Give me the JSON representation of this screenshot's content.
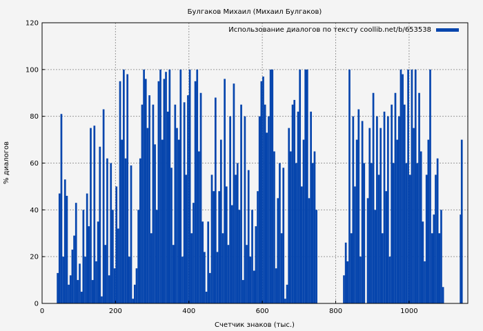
{
  "chart_data": {
    "type": "bar",
    "title": "Булгаков Михаил (Михаил Булгаков)",
    "xlabel": "Счетчик знаков (тыс.)",
    "ylabel": "% диалогов",
    "xlim": [
      0,
      1160
    ],
    "ylim": [
      0,
      120
    ],
    "xticks": [
      0,
      200,
      400,
      600,
      800,
      1000
    ],
    "yticks": [
      0,
      20,
      40,
      60,
      80,
      100,
      120
    ],
    "grid": true,
    "legend_placement": "top-right",
    "series": [
      {
        "name": "Использование диалогов по тексту coollib.net/b/653538",
        "color": "#0645ad",
        "points": [
          [
            40,
            13
          ],
          [
            45,
            47
          ],
          [
            50,
            81
          ],
          [
            55,
            20
          ],
          [
            60,
            53
          ],
          [
            65,
            46
          ],
          [
            70,
            8
          ],
          [
            75,
            12
          ],
          [
            80,
            23
          ],
          [
            85,
            29
          ],
          [
            90,
            43
          ],
          [
            95,
            10
          ],
          [
            100,
            17
          ],
          [
            105,
            5
          ],
          [
            110,
            40
          ],
          [
            115,
            20
          ],
          [
            120,
            47
          ],
          [
            125,
            33
          ],
          [
            130,
            75
          ],
          [
            135,
            10
          ],
          [
            140,
            76
          ],
          [
            145,
            18
          ],
          [
            150,
            35
          ],
          [
            155,
            67
          ],
          [
            160,
            3
          ],
          [
            165,
            83
          ],
          [
            170,
            25
          ],
          [
            175,
            62
          ],
          [
            180,
            12
          ],
          [
            185,
            60
          ],
          [
            190,
            40
          ],
          [
            195,
            15
          ],
          [
            200,
            50
          ],
          [
            205,
            32
          ],
          [
            210,
            95
          ],
          [
            215,
            70
          ],
          [
            220,
            100
          ],
          [
            225,
            62
          ],
          [
            230,
            98
          ],
          [
            235,
            20
          ],
          [
            240,
            59
          ],
          [
            245,
            2
          ],
          [
            250,
            8
          ],
          [
            255,
            15
          ],
          [
            260,
            40
          ],
          [
            265,
            62
          ],
          [
            270,
            85
          ],
          [
            275,
            100
          ],
          [
            280,
            96
          ],
          [
            285,
            75
          ],
          [
            290,
            89
          ],
          [
            295,
            30
          ],
          [
            300,
            85
          ],
          [
            305,
            68
          ],
          [
            310,
            40
          ],
          [
            315,
            95
          ],
          [
            320,
            100
          ],
          [
            325,
            70
          ],
          [
            330,
            96
          ],
          [
            335,
            99
          ],
          [
            340,
            82
          ],
          [
            345,
            100
          ],
          [
            350,
            58
          ],
          [
            355,
            25
          ],
          [
            360,
            85
          ],
          [
            365,
            75
          ],
          [
            370,
            70
          ],
          [
            375,
            100
          ],
          [
            380,
            20
          ],
          [
            385,
            86
          ],
          [
            390,
            55
          ],
          [
            395,
            89
          ],
          [
            400,
            100
          ],
          [
            405,
            30
          ],
          [
            410,
            43
          ],
          [
            415,
            95
          ],
          [
            420,
            100
          ],
          [
            425,
            65
          ],
          [
            430,
            90
          ],
          [
            435,
            35
          ],
          [
            440,
            22
          ],
          [
            445,
            5
          ],
          [
            450,
            35
          ],
          [
            455,
            13
          ],
          [
            460,
            55
          ],
          [
            465,
            48
          ],
          [
            470,
            88
          ],
          [
            475,
            22
          ],
          [
            480,
            48
          ],
          [
            485,
            70
          ],
          [
            490,
            30
          ],
          [
            495,
            96
          ],
          [
            500,
            50
          ],
          [
            505,
            25
          ],
          [
            510,
            80
          ],
          [
            515,
            42
          ],
          [
            520,
            94
          ],
          [
            525,
            55
          ],
          [
            530,
            60
          ],
          [
            535,
            40
          ],
          [
            540,
            85
          ],
          [
            545,
            10
          ],
          [
            550,
            80
          ],
          [
            555,
            25
          ],
          [
            560,
            57
          ],
          [
            565,
            20
          ],
          [
            570,
            40
          ],
          [
            575,
            14
          ],
          [
            580,
            33
          ],
          [
            585,
            48
          ],
          [
            590,
            80
          ],
          [
            595,
            95
          ],
          [
            600,
            97
          ],
          [
            605,
            85
          ],
          [
            610,
            73
          ],
          [
            615,
            80
          ],
          [
            620,
            100
          ],
          [
            625,
            100
          ],
          [
            630,
            65
          ],
          [
            635,
            15
          ],
          [
            640,
            45
          ],
          [
            645,
            60
          ],
          [
            650,
            30
          ],
          [
            655,
            58
          ],
          [
            660,
            2
          ],
          [
            665,
            8
          ],
          [
            670,
            75
          ],
          [
            675,
            65
          ],
          [
            680,
            85
          ],
          [
            685,
            87
          ],
          [
            690,
            60
          ],
          [
            695,
            82
          ],
          [
            700,
            100
          ],
          [
            705,
            50
          ],
          [
            710,
            70
          ],
          [
            715,
            100
          ],
          [
            720,
            100
          ],
          [
            725,
            45
          ],
          [
            730,
            82
          ],
          [
            735,
            60
          ],
          [
            740,
            65
          ],
          [
            745,
            40
          ],
          [
            820,
            12
          ],
          [
            825,
            26
          ],
          [
            830,
            18
          ],
          [
            835,
            100
          ],
          [
            840,
            30
          ],
          [
            845,
            80
          ],
          [
            850,
            50
          ],
          [
            855,
            70
          ],
          [
            860,
            83
          ],
          [
            865,
            20
          ],
          [
            870,
            78
          ],
          [
            875,
            60
          ],
          [
            885,
            45
          ],
          [
            890,
            75
          ],
          [
            895,
            60
          ],
          [
            900,
            90
          ],
          [
            905,
            40
          ],
          [
            910,
            80
          ],
          [
            915,
            55
          ],
          [
            920,
            75
          ],
          [
            925,
            30
          ],
          [
            930,
            82
          ],
          [
            935,
            48
          ],
          [
            940,
            80
          ],
          [
            945,
            20
          ],
          [
            950,
            85
          ],
          [
            955,
            60
          ],
          [
            960,
            90
          ],
          [
            965,
            70
          ],
          [
            970,
            80
          ],
          [
            975,
            100
          ],
          [
            980,
            98
          ],
          [
            985,
            85
          ],
          [
            990,
            60
          ],
          [
            995,
            100
          ],
          [
            1000,
            55
          ],
          [
            1005,
            100
          ],
          [
            1010,
            75
          ],
          [
            1015,
            100
          ],
          [
            1020,
            60
          ],
          [
            1025,
            90
          ],
          [
            1030,
            65
          ],
          [
            1035,
            35
          ],
          [
            1040,
            18
          ],
          [
            1045,
            55
          ],
          [
            1050,
            70
          ],
          [
            1055,
            100
          ],
          [
            1060,
            30
          ],
          [
            1065,
            38
          ],
          [
            1070,
            55
          ],
          [
            1075,
            62
          ],
          [
            1080,
            30
          ],
          [
            1085,
            40
          ],
          [
            1090,
            7
          ],
          [
            1138,
            38
          ],
          [
            1141,
            70
          ]
        ]
      }
    ]
  }
}
